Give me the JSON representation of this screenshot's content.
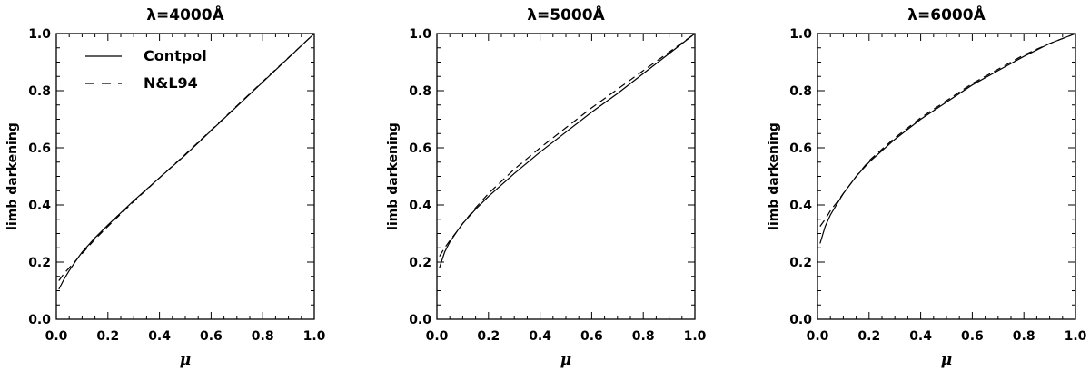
{
  "chart_data": [
    {
      "type": "line",
      "title": "λ=4000Å",
      "xlabel": "μ",
      "ylabel": "limb darkening",
      "xlim": [
        0,
        1
      ],
      "ylim": [
        0,
        1
      ],
      "xticks": [
        "0.0",
        "0.2",
        "0.4",
        "0.6",
        "0.8",
        "1.0"
      ],
      "yticks": [
        "0.0",
        "0.2",
        "0.4",
        "0.6",
        "0.8",
        "1.0"
      ],
      "legend": {
        "placement": "top-left",
        "entries": [
          "Contpol",
          "N&L94"
        ]
      },
      "series": [
        {
          "name": "Contpol",
          "style": "solid",
          "x": [
            0.01,
            0.03,
            0.05,
            0.08,
            0.1,
            0.15,
            0.2,
            0.3,
            0.4,
            0.5,
            0.6,
            0.7,
            0.8,
            0.9,
            1.0
          ],
          "y": [
            0.105,
            0.14,
            0.17,
            0.21,
            0.235,
            0.285,
            0.33,
            0.415,
            0.495,
            0.575,
            0.66,
            0.745,
            0.83,
            0.915,
            1.0
          ]
        },
        {
          "name": "N&L94",
          "style": "dashed",
          "x": [
            0.01,
            0.03,
            0.05,
            0.08,
            0.1,
            0.15,
            0.2,
            0.3,
            0.4,
            0.5,
            0.6,
            0.7,
            0.8,
            0.9,
            1.0
          ],
          "y": [
            0.135,
            0.16,
            0.18,
            0.21,
            0.23,
            0.28,
            0.325,
            0.412,
            0.495,
            0.577,
            0.662,
            0.747,
            0.832,
            0.916,
            1.0
          ]
        }
      ]
    },
    {
      "type": "line",
      "title": "λ=5000Å",
      "xlabel": "μ",
      "ylabel": "limb darkening",
      "xlim": [
        0,
        1
      ],
      "ylim": [
        0,
        1
      ],
      "xticks": [
        "0.0",
        "0.2",
        "0.4",
        "0.6",
        "0.8",
        "1.0"
      ],
      "yticks": [
        "0.0",
        "0.2",
        "0.4",
        "0.6",
        "0.8",
        "1.0"
      ],
      "series": [
        {
          "name": "Contpol",
          "style": "solid",
          "x": [
            0.01,
            0.03,
            0.05,
            0.08,
            0.1,
            0.15,
            0.2,
            0.3,
            0.4,
            0.5,
            0.6,
            0.7,
            0.8,
            0.9,
            1.0
          ],
          "y": [
            0.18,
            0.235,
            0.27,
            0.31,
            0.335,
            0.385,
            0.43,
            0.51,
            0.585,
            0.655,
            0.725,
            0.79,
            0.86,
            0.93,
            1.0
          ]
        },
        {
          "name": "N&L94",
          "style": "dashed",
          "x": [
            0.01,
            0.03,
            0.05,
            0.08,
            0.1,
            0.15,
            0.2,
            0.3,
            0.4,
            0.5,
            0.6,
            0.7,
            0.8,
            0.9,
            1.0
          ],
          "y": [
            0.22,
            0.25,
            0.275,
            0.31,
            0.335,
            0.39,
            0.44,
            0.525,
            0.6,
            0.67,
            0.74,
            0.805,
            0.87,
            0.935,
            1.0
          ]
        }
      ]
    },
    {
      "type": "line",
      "title": "λ=6000Å",
      "xlabel": "μ",
      "ylabel": "limb darkening",
      "xlim": [
        0,
        1
      ],
      "ylim": [
        0,
        1
      ],
      "xticks": [
        "0.0",
        "0.2",
        "0.4",
        "0.6",
        "0.8",
        "1.0"
      ],
      "yticks": [
        "0.0",
        "0.2",
        "0.4",
        "0.6",
        "0.8",
        "1.0"
      ],
      "series": [
        {
          "name": "Contpol",
          "style": "solid",
          "x": [
            0.01,
            0.03,
            0.05,
            0.08,
            0.1,
            0.15,
            0.2,
            0.3,
            0.4,
            0.5,
            0.6,
            0.7,
            0.8,
            0.9,
            1.0
          ],
          "y": [
            0.265,
            0.325,
            0.365,
            0.41,
            0.44,
            0.5,
            0.55,
            0.63,
            0.7,
            0.76,
            0.82,
            0.87,
            0.92,
            0.965,
            1.0
          ]
        },
        {
          "name": "N&L94",
          "style": "dashed",
          "x": [
            0.01,
            0.03,
            0.05,
            0.08,
            0.1,
            0.15,
            0.2,
            0.3,
            0.4,
            0.5,
            0.6,
            0.7,
            0.8,
            0.9,
            1.0
          ],
          "y": [
            0.325,
            0.35,
            0.38,
            0.415,
            0.44,
            0.5,
            0.555,
            0.635,
            0.705,
            0.765,
            0.825,
            0.875,
            0.925,
            0.965,
            1.0
          ]
        }
      ]
    }
  ]
}
